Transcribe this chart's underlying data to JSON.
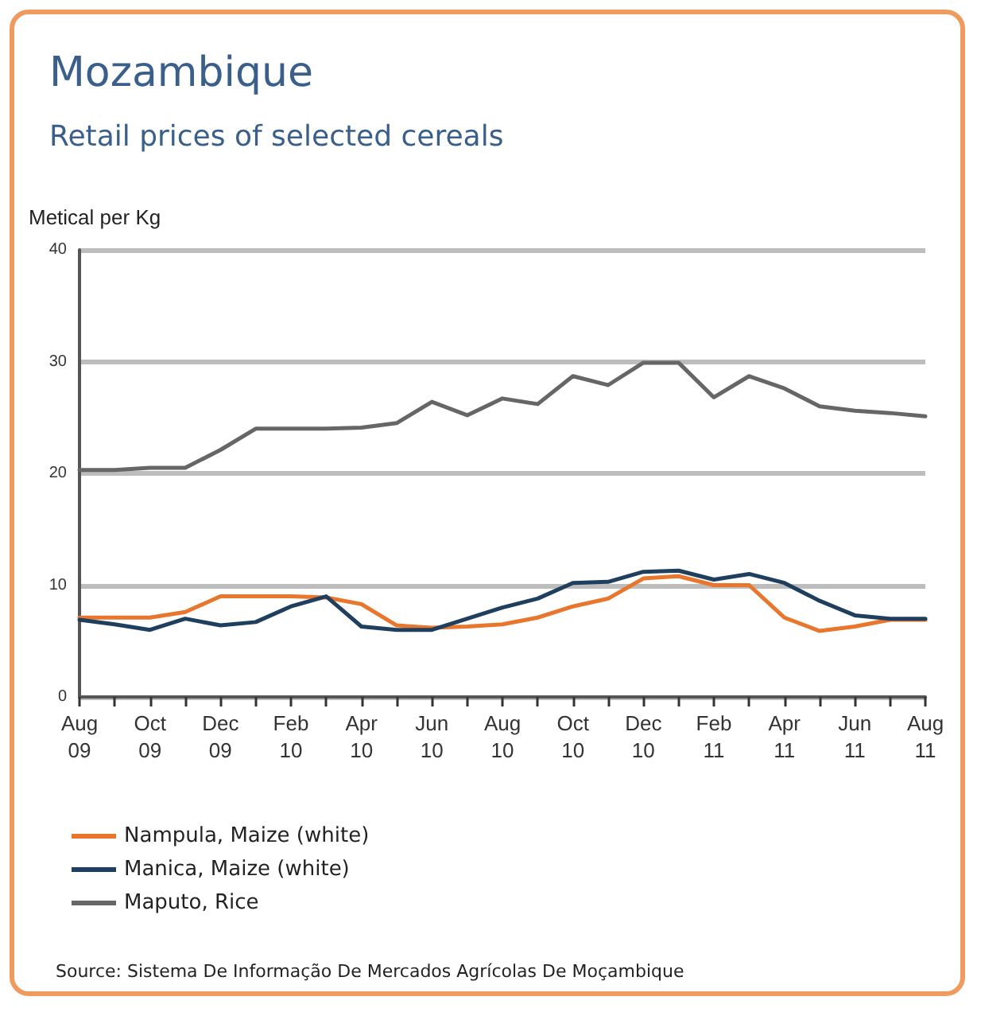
{
  "chart_data": {
    "type": "line",
    "title": "Mozambique",
    "subtitle": "Retail prices of selected cereals",
    "ylabel": "Metical per Kg",
    "categories": [
      "Aug 09",
      null,
      "Oct 09",
      null,
      "Dec 09",
      null,
      "Feb 10",
      null,
      "Apr 10",
      null,
      "Jun 10",
      null,
      "Aug 10",
      null,
      "Oct 10",
      null,
      "Dec 10",
      null,
      "Feb 11",
      null,
      "Apr 11",
      null,
      "Jun 11",
      null,
      "Aug 11"
    ],
    "series": [
      {
        "name": "Nampula, Maize (white)",
        "color": "#e8762d",
        "values": [
          7.1,
          7.1,
          7.1,
          7.6,
          9.0,
          9.0,
          9.0,
          8.9,
          8.3,
          6.4,
          6.2,
          6.3,
          6.5,
          7.1,
          8.1,
          8.8,
          10.6,
          10.8,
          10.0,
          10.0,
          7.1,
          5.9,
          6.3,
          6.9,
          6.9
        ]
      },
      {
        "name": "Manica, Maize (white)",
        "color": "#1f3f5e",
        "values": [
          6.9,
          6.5,
          6.0,
          7.0,
          6.4,
          6.7,
          8.1,
          9.0,
          6.3,
          6.0,
          6.0,
          7.0,
          8.0,
          8.8,
          10.2,
          10.3,
          11.2,
          11.3,
          10.5,
          11.0,
          10.2,
          8.6,
          7.3,
          7.0,
          7.0
        ]
      },
      {
        "name": "Maputo, Rice",
        "color": "#666666",
        "values": [
          20.3,
          20.3,
          20.5,
          20.5,
          22.1,
          24.0,
          24.0,
          24.0,
          24.1,
          24.5,
          26.4,
          25.2,
          26.7,
          26.2,
          28.7,
          27.9,
          29.9,
          29.9,
          26.8,
          28.7,
          27.6,
          26.0,
          25.6,
          25.4,
          25.1
        ]
      }
    ],
    "ylim": [
      0,
      40
    ],
    "yticks": [
      0,
      10,
      20,
      30,
      40
    ],
    "grid": "y",
    "legend": "bottom",
    "marker": "none",
    "line_style": "solid",
    "annotations": [
      "Source: Sistema De Informação De Mercados Agrícolas De Moçambique"
    ]
  }
}
